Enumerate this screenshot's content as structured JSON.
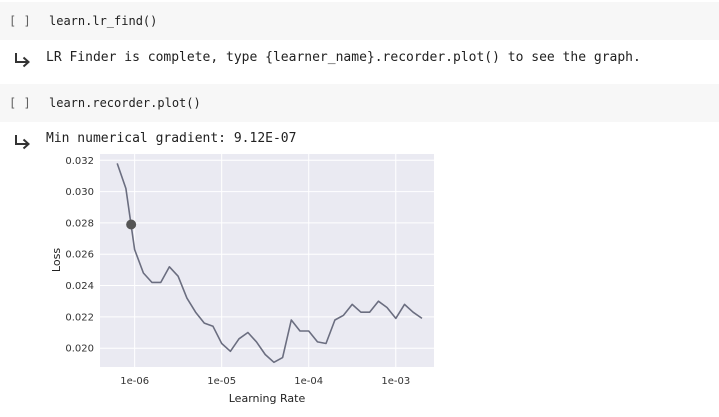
{
  "cells": [
    {
      "prompt": "[ ]",
      "code": "learn.lr_find()",
      "output": "LR Finder is complete, type {learner_name}.recorder.plot() to see the graph."
    },
    {
      "prompt": "[ ]",
      "code": "learn.recorder.plot()",
      "output": "Min numerical gradient: 9.12E-07"
    }
  ],
  "chart_data": {
    "type": "line",
    "xlabel": "Learning Rate",
    "ylabel": "Loss",
    "x_scale": "log",
    "xlim": [
      4e-07,
      0.00275
    ],
    "ylim": [
      0.0188,
      0.0324
    ],
    "x_ticks": [
      1e-06,
      1e-05,
      0.0001,
      0.001
    ],
    "x_tick_labels": [
      "1e-06",
      "1e-05",
      "1e-04",
      "1e-03"
    ],
    "y_ticks": [
      0.02,
      0.022,
      0.024,
      0.026,
      0.028,
      0.03,
      0.032
    ],
    "y_tick_labels": [
      "0.020",
      "0.022",
      "0.024",
      "0.026",
      "0.028",
      "0.030",
      "0.032"
    ],
    "grid": true,
    "line_color": "#6b6e80",
    "marker_color": "#555555",
    "marker": {
      "x": 9.12e-07,
      "y": 0.0279
    },
    "series": [
      {
        "x": [
          6.31e-07,
          7.94e-07,
          1e-06,
          1.26e-06,
          1.58e-06,
          2e-06,
          2.51e-06,
          3.16e-06,
          3.98e-06,
          5.01e-06,
          6.31e-06,
          7.94e-06,
          1e-05,
          1.26e-05,
          1.58e-05,
          2e-05,
          2.51e-05,
          3.16e-05,
          3.98e-05,
          5.01e-05,
          6.31e-05,
          7.94e-05,
          0.0001,
          0.000126,
          0.000158,
          0.0002,
          0.000251,
          0.000316,
          0.000398,
          0.000501,
          0.000631,
          0.000794,
          0.001,
          0.00126,
          0.00158,
          0.002
        ],
        "y": [
          0.0318,
          0.0302,
          0.0263,
          0.0248,
          0.0242,
          0.0242,
          0.0252,
          0.0246,
          0.0232,
          0.0223,
          0.0216,
          0.0214,
          0.0203,
          0.0198,
          0.0206,
          0.021,
          0.0204,
          0.0196,
          0.0191,
          0.0194,
          0.0218,
          0.0211,
          0.0211,
          0.0204,
          0.0203,
          0.0218,
          0.0221,
          0.0228,
          0.0223,
          0.0223,
          0.023,
          0.0226,
          0.0219,
          0.0228,
          0.0223,
          0.0219
        ]
      }
    ]
  }
}
